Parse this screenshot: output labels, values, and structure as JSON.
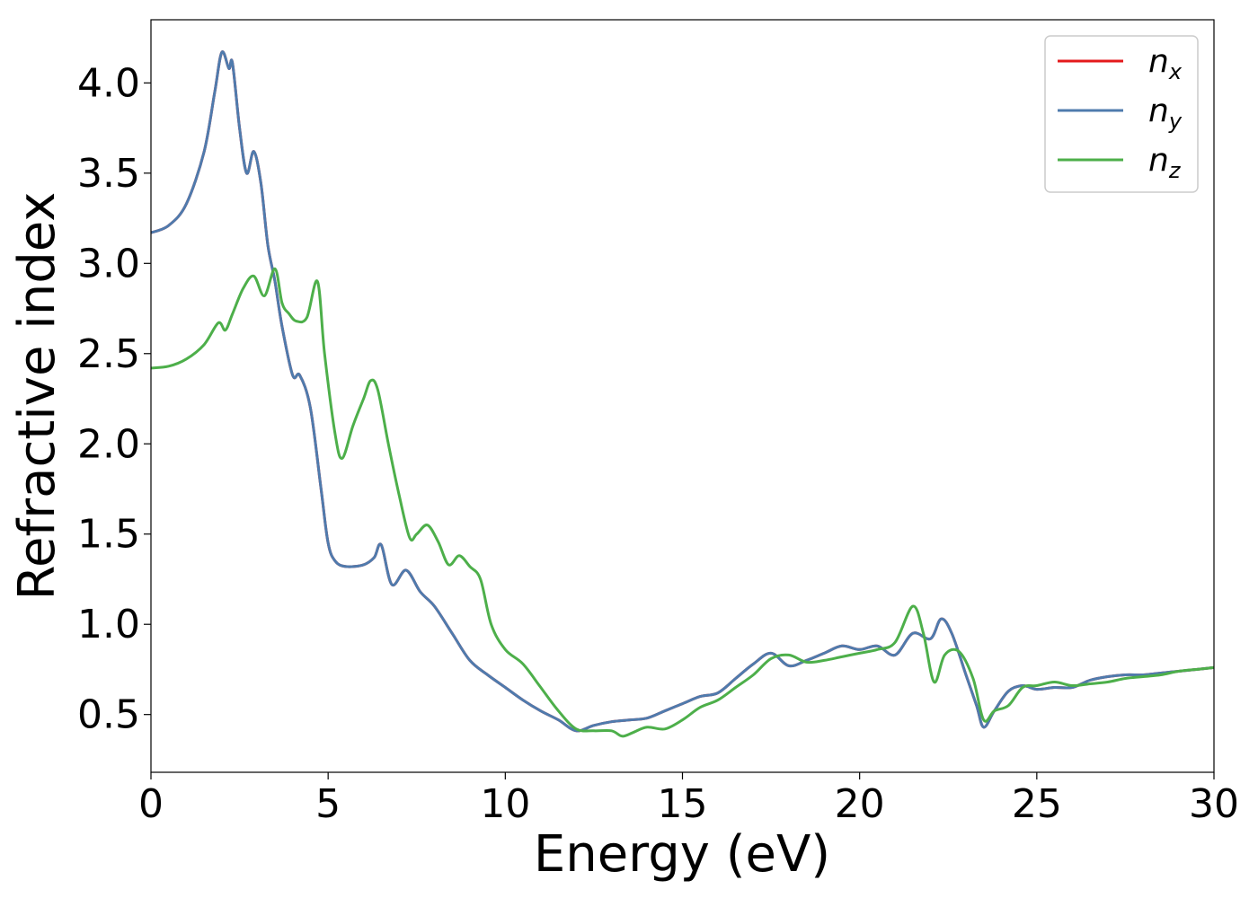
{
  "chart_data": {
    "type": "line",
    "xlabel": "Energy (eV)",
    "ylabel": "Refractive index",
    "xlim": [
      0,
      30
    ],
    "ylim": [
      0.18,
      4.35
    ],
    "xticks": [
      "0",
      "5",
      "10",
      "15",
      "20",
      "25",
      "30"
    ],
    "xtick_values": [
      0,
      5,
      10,
      15,
      20,
      25,
      30
    ],
    "yticks": [
      "0.5",
      "1.0",
      "1.5",
      "2.0",
      "2.5",
      "3.0",
      "3.5",
      "4.0"
    ],
    "ytick_values": [
      0.5,
      1.0,
      1.5,
      2.0,
      2.5,
      3.0,
      3.5,
      4.0
    ],
    "grid": false,
    "legend_position": "top-right",
    "series": [
      {
        "name": "n",
        "subscript": "x",
        "color": "#e41a1c",
        "x": [
          0,
          0.5,
          1.0,
          1.5,
          1.8,
          2.0,
          2.2,
          2.3,
          2.5,
          2.7,
          2.9,
          3.1,
          3.3,
          3.5,
          3.7,
          4.0,
          4.2,
          4.5,
          4.8,
          5.0,
          5.2,
          5.5,
          6.0,
          6.3,
          6.5,
          6.8,
          7.2,
          7.6,
          8.0,
          8.5,
          9.0,
          9.5,
          10.0,
          10.5,
          11.0,
          11.5,
          12.0,
          12.5,
          13.0,
          13.5,
          14.0,
          14.5,
          15.0,
          15.5,
          16.0,
          16.5,
          17.0,
          17.5,
          18.0,
          18.5,
          19.0,
          19.5,
          20.0,
          20.5,
          21.0,
          21.5,
          22.0,
          22.3,
          22.6,
          23.0,
          23.3,
          23.5,
          23.8,
          24.2,
          24.6,
          25.0,
          25.5,
          26.0,
          26.5,
          27.0,
          27.5,
          28.0,
          28.5,
          29.0,
          29.5,
          30.0
        ],
        "values": [
          3.17,
          3.21,
          3.33,
          3.62,
          3.95,
          4.17,
          4.08,
          4.11,
          3.75,
          3.5,
          3.62,
          3.45,
          3.1,
          2.9,
          2.65,
          2.38,
          2.38,
          2.2,
          1.75,
          1.45,
          1.35,
          1.32,
          1.33,
          1.37,
          1.44,
          1.22,
          1.3,
          1.18,
          1.1,
          0.95,
          0.8,
          0.72,
          0.65,
          0.58,
          0.52,
          0.47,
          0.41,
          0.44,
          0.46,
          0.47,
          0.48,
          0.52,
          0.56,
          0.6,
          0.62,
          0.7,
          0.78,
          0.84,
          0.77,
          0.8,
          0.84,
          0.88,
          0.86,
          0.88,
          0.83,
          0.95,
          0.92,
          1.03,
          0.95,
          0.72,
          0.55,
          0.43,
          0.52,
          0.63,
          0.66,
          0.64,
          0.65,
          0.65,
          0.69,
          0.71,
          0.72,
          0.72,
          0.73,
          0.74,
          0.75,
          0.76
        ]
      },
      {
        "name": "n",
        "subscript": "y",
        "color": "#4f7bad",
        "x": [
          0,
          0.5,
          1.0,
          1.5,
          1.8,
          2.0,
          2.2,
          2.3,
          2.5,
          2.7,
          2.9,
          3.1,
          3.3,
          3.5,
          3.7,
          4.0,
          4.2,
          4.5,
          4.8,
          5.0,
          5.2,
          5.5,
          6.0,
          6.3,
          6.5,
          6.8,
          7.2,
          7.6,
          8.0,
          8.5,
          9.0,
          9.5,
          10.0,
          10.5,
          11.0,
          11.5,
          12.0,
          12.5,
          13.0,
          13.5,
          14.0,
          14.5,
          15.0,
          15.5,
          16.0,
          16.5,
          17.0,
          17.5,
          18.0,
          18.5,
          19.0,
          19.5,
          20.0,
          20.5,
          21.0,
          21.5,
          22.0,
          22.3,
          22.6,
          23.0,
          23.3,
          23.5,
          23.8,
          24.2,
          24.6,
          25.0,
          25.5,
          26.0,
          26.5,
          27.0,
          27.5,
          28.0,
          28.5,
          29.0,
          29.5,
          30.0
        ],
        "values": [
          3.17,
          3.21,
          3.33,
          3.62,
          3.95,
          4.17,
          4.08,
          4.11,
          3.75,
          3.5,
          3.62,
          3.45,
          3.1,
          2.9,
          2.65,
          2.38,
          2.38,
          2.2,
          1.75,
          1.45,
          1.35,
          1.32,
          1.33,
          1.37,
          1.44,
          1.22,
          1.3,
          1.18,
          1.1,
          0.95,
          0.8,
          0.72,
          0.65,
          0.58,
          0.52,
          0.47,
          0.41,
          0.44,
          0.46,
          0.47,
          0.48,
          0.52,
          0.56,
          0.6,
          0.62,
          0.7,
          0.78,
          0.84,
          0.77,
          0.8,
          0.84,
          0.88,
          0.86,
          0.88,
          0.83,
          0.95,
          0.92,
          1.03,
          0.95,
          0.72,
          0.55,
          0.43,
          0.52,
          0.63,
          0.66,
          0.64,
          0.65,
          0.65,
          0.69,
          0.71,
          0.72,
          0.72,
          0.73,
          0.74,
          0.75,
          0.76
        ]
      },
      {
        "name": "n",
        "subscript": "z",
        "color": "#4daf4a",
        "x": [
          0,
          0.5,
          1.0,
          1.5,
          1.9,
          2.1,
          2.3,
          2.6,
          2.9,
          3.2,
          3.5,
          3.7,
          3.9,
          4.1,
          4.4,
          4.7,
          4.9,
          5.2,
          5.4,
          5.7,
          6.0,
          6.2,
          6.4,
          6.7,
          7.0,
          7.3,
          7.5,
          7.8,
          8.1,
          8.4,
          8.7,
          9.0,
          9.3,
          9.6,
          10.0,
          10.5,
          11.0,
          11.5,
          12.0,
          12.5,
          13.0,
          13.3,
          13.6,
          14.0,
          14.5,
          15.0,
          15.5,
          16.0,
          16.5,
          17.0,
          17.5,
          18.0,
          18.5,
          19.0,
          19.5,
          20.0,
          20.5,
          21.0,
          21.5,
          21.8,
          22.1,
          22.4,
          22.8,
          23.2,
          23.5,
          23.8,
          24.2,
          24.6,
          25.0,
          25.5,
          26.0,
          26.5,
          27.0,
          27.5,
          28.0,
          28.5,
          29.0,
          29.5,
          30.0
        ],
        "values": [
          2.42,
          2.43,
          2.47,
          2.55,
          2.67,
          2.63,
          2.72,
          2.86,
          2.93,
          2.82,
          2.97,
          2.78,
          2.72,
          2.68,
          2.7,
          2.9,
          2.5,
          2.05,
          1.92,
          2.1,
          2.25,
          2.35,
          2.3,
          2.0,
          1.72,
          1.48,
          1.5,
          1.55,
          1.46,
          1.33,
          1.38,
          1.32,
          1.25,
          1.0,
          0.86,
          0.78,
          0.65,
          0.52,
          0.42,
          0.41,
          0.41,
          0.38,
          0.4,
          0.43,
          0.42,
          0.47,
          0.54,
          0.58,
          0.65,
          0.72,
          0.81,
          0.83,
          0.79,
          0.8,
          0.82,
          0.84,
          0.86,
          0.9,
          1.1,
          0.95,
          0.68,
          0.83,
          0.85,
          0.7,
          0.47,
          0.52,
          0.55,
          0.65,
          0.66,
          0.68,
          0.66,
          0.67,
          0.68,
          0.7,
          0.71,
          0.72,
          0.74,
          0.75,
          0.76
        ]
      }
    ]
  }
}
